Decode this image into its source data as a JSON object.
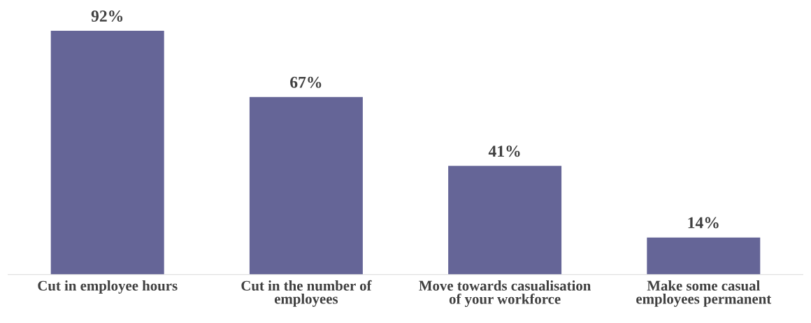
{
  "chart_data": {
    "type": "bar",
    "categories": [
      "Cut in employee hours",
      "Cut in the number of\nemployees",
      "Move towards casualisation\nof your workforce",
      "Make some casual\nemployees permanent"
    ],
    "values": [
      92,
      67,
      41,
      14
    ],
    "value_labels": [
      "92%",
      "67%",
      "41%",
      "14%"
    ],
    "color": "#656597"
  }
}
